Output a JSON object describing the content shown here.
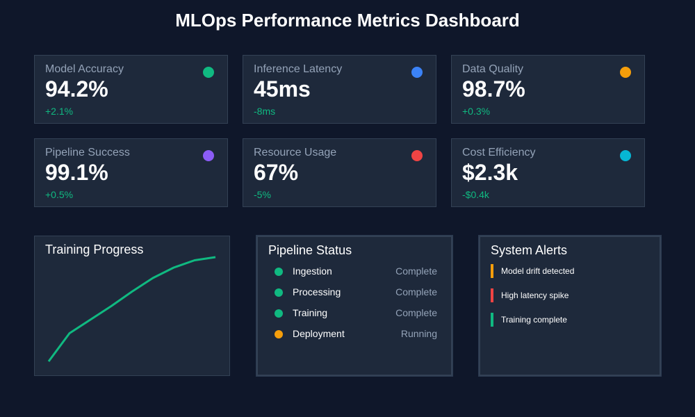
{
  "header": {
    "title": "MLOps Performance Metrics Dashboard"
  },
  "metrics": [
    {
      "label": "Model Accuracy",
      "value": "94.2%",
      "delta": "+2.1%",
      "color": "#10b981",
      "icon": "status-dot"
    },
    {
      "label": "Inference Latency",
      "value": "45ms",
      "delta": "-8ms",
      "color": "#3b82f6",
      "icon": "status-dot"
    },
    {
      "label": "Data Quality",
      "value": "98.7%",
      "delta": "+0.3%",
      "color": "#f59e0b",
      "icon": "status-dot"
    },
    {
      "label": "Pipeline Success",
      "value": "99.1%",
      "delta": "+0.5%",
      "color": "#8b5cf6",
      "icon": "status-dot"
    },
    {
      "label": "Resource Usage",
      "value": "67%",
      "delta": "-5%",
      "color": "#ef4444",
      "icon": "status-dot"
    },
    {
      "label": "Cost Efficiency",
      "value": "$2.3k",
      "delta": "-$0.4k",
      "color": "#06b6d4",
      "icon": "status-dot"
    }
  ],
  "training": {
    "title": "Training Progress",
    "line_color": "#10b981"
  },
  "chart_data": {
    "type": "line",
    "title": "Training Progress",
    "xlabel": "",
    "ylabel": "",
    "x": [
      1,
      2,
      3,
      4,
      5,
      6,
      7,
      8,
      9
    ],
    "series": [
      {
        "name": "progress",
        "values": [
          0,
          27,
          40,
          53,
          67,
          80,
          90,
          97,
          100
        ]
      }
    ],
    "ylim": [
      0,
      100
    ],
    "grid": false,
    "legend": "none"
  },
  "pipeline": {
    "title": "Pipeline Status",
    "stages": [
      {
        "name": "Ingestion",
        "status": "Complete",
        "color": "#10b981"
      },
      {
        "name": "Processing",
        "status": "Complete",
        "color": "#10b981"
      },
      {
        "name": "Training",
        "status": "Complete",
        "color": "#10b981"
      },
      {
        "name": "Deployment",
        "status": "Running",
        "color": "#f59e0b"
      }
    ]
  },
  "alerts": {
    "title": "System Alerts",
    "items": [
      {
        "text": "Model drift detected",
        "color": "#f59e0b"
      },
      {
        "text": "High latency spike",
        "color": "#ef4444"
      },
      {
        "text": "Training complete",
        "color": "#10b981"
      }
    ]
  }
}
